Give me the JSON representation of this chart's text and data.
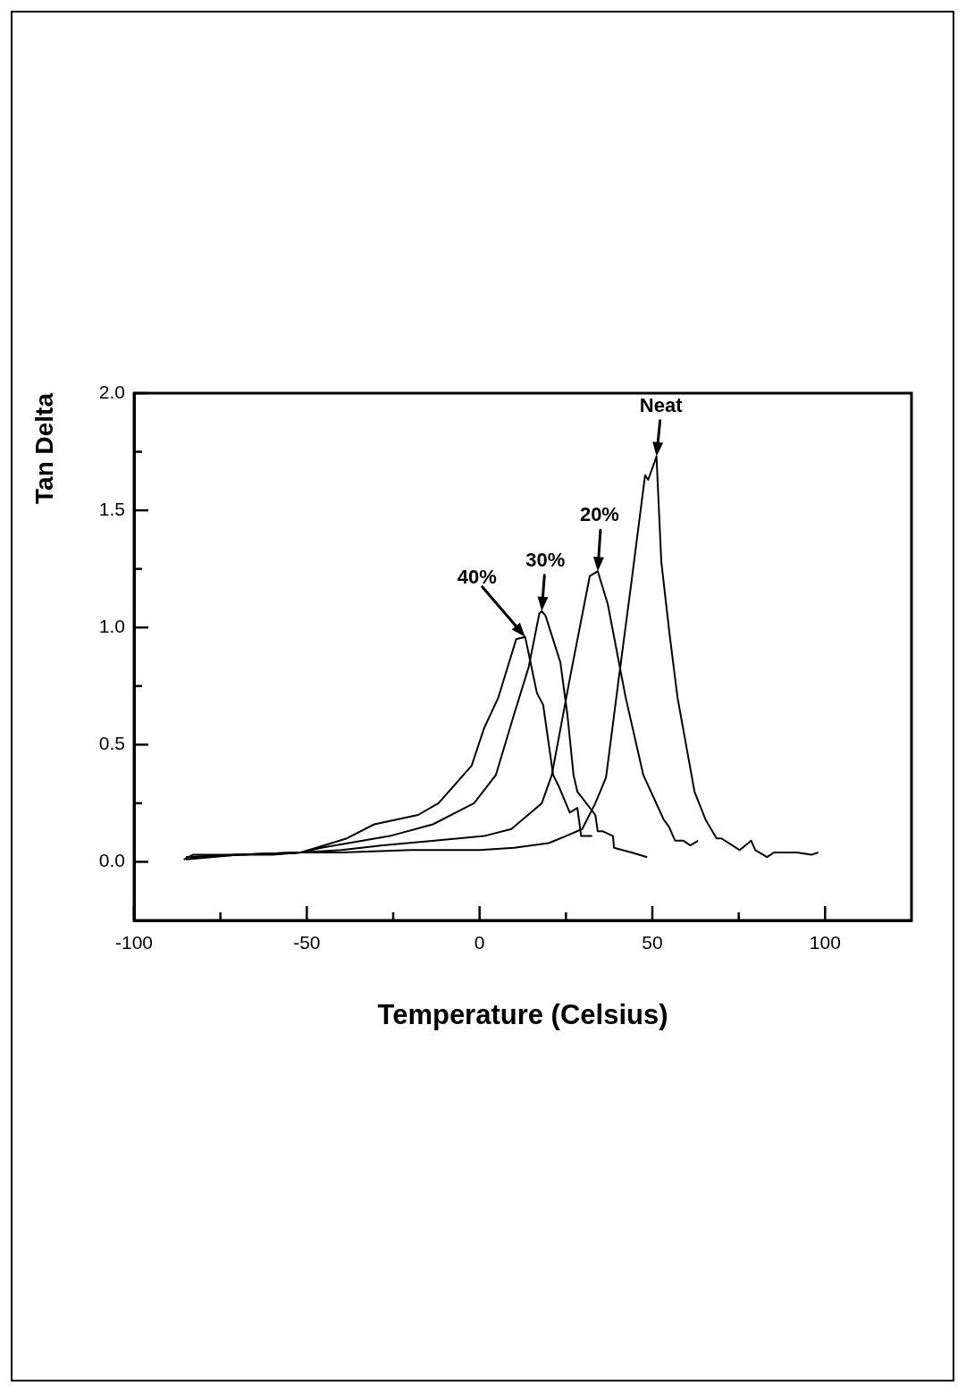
{
  "chart_data": {
    "type": "line",
    "xlabel": "Temperature (Celsius)",
    "ylabel": "Tan Delta",
    "xlim": [
      -100,
      125
    ],
    "ylim": [
      -0.25,
      2.0
    ],
    "xticks": [
      -100,
      {
        "value": -75,
        "label": null
      },
      -50,
      {
        "value": -25,
        "label": null
      },
      0,
      {
        "value": 25,
        "label": null
      },
      50,
      {
        "value": 75,
        "label": null
      },
      100
    ],
    "yticks": [
      {
        "value": 0,
        "label": "0.0"
      },
      {
        "value": 0.25,
        "label": null
      },
      {
        "value": 0.5,
        "label": "0.5"
      },
      {
        "value": 0.75,
        "label": null
      },
      {
        "value": 1,
        "label": "1.0"
      },
      {
        "value": 1.25,
        "label": null
      },
      {
        "value": 1.5,
        "label": "1.5"
      },
      {
        "value": 1.75,
        "label": null
      },
      {
        "value": 2,
        "label": "2.0"
      }
    ],
    "marker": "none",
    "series": [
      {
        "color": "#000000",
        "x": [
          -85.6,
          -83,
          -70,
          -60,
          -51.7,
          -40,
          -20,
          0,
          10,
          20,
          25,
          29.7,
          33.5,
          36.6,
          40,
          44,
          47.9,
          48.8,
          51.2,
          52.6,
          55,
          57.3,
          60,
          62.2,
          65.4,
          68.6,
          70,
          75.3,
          78.6,
          79.8,
          83.2,
          85.2,
          88,
          91.9,
          96,
          98
        ],
        "values": [
          0.01,
          0.03,
          0.03,
          0.03,
          0.04,
          0.04,
          0.05,
          0.05,
          0.06,
          0.08,
          0.11,
          0.14,
          0.25,
          0.36,
          0.75,
          1.2,
          1.65,
          1.63,
          1.73,
          1.28,
          0.97,
          0.7,
          0.48,
          0.3,
          0.18,
          0.1,
          0.1,
          0.05,
          0.09,
          0.05,
          0.02,
          0.04,
          0.04,
          0.04,
          0.03,
          0.04
        ]
      },
      {
        "color": "#000000",
        "x": [
          -85,
          -70,
          -51.7,
          -40,
          -28,
          -13,
          1.3,
          9.2,
          18,
          20.9,
          26.1,
          31.9,
          34.2,
          37.1,
          42.3,
          47.4,
          53.3,
          54.8,
          56.6,
          59,
          61,
          63.2
        ],
        "values": [
          0.02,
          0.03,
          0.04,
          0.05,
          0.07,
          0.09,
          0.11,
          0.14,
          0.25,
          0.37,
          0.78,
          1.22,
          1.24,
          1.1,
          0.7,
          0.37,
          0.18,
          0.15,
          0.09,
          0.09,
          0.07,
          0.09
        ]
      },
      {
        "color": "#000000",
        "x": [
          -84,
          -70,
          -51.7,
          -45.8,
          -26,
          -13.5,
          -1.6,
          4.7,
          10,
          14.2,
          17.3,
          18,
          19.1,
          23.4,
          25.4,
          27.2,
          28.3,
          33.5,
          34.2,
          35.7,
          38.6,
          38.9,
          44,
          48.5
        ],
        "values": [
          0.02,
          0.03,
          0.04,
          0.06,
          0.11,
          0.16,
          0.25,
          0.37,
          0.63,
          0.83,
          1.06,
          1.07,
          1.05,
          0.85,
          0.63,
          0.37,
          0.3,
          0.2,
          0.13,
          0.13,
          0.11,
          0.06,
          0.04,
          0.02
        ]
      },
      {
        "color": "#000000",
        "x": [
          -85,
          -70,
          -51.7,
          -38.4,
          -30.5,
          -17.8,
          -11.9,
          -2.3,
          1.3,
          5.4,
          10.6,
          13.2,
          16.6,
          18.4,
          21.3,
          23,
          26.1,
          28.3,
          29.4,
          32.6
        ],
        "values": [
          0.01,
          0.03,
          0.04,
          0.1,
          0.16,
          0.2,
          0.25,
          0.41,
          0.57,
          0.7,
          0.95,
          0.96,
          0.72,
          0.67,
          0.37,
          0.32,
          0.21,
          0.23,
          0.11,
          0.11
        ]
      }
    ],
    "annotations": [
      {
        "text": "Neat",
        "x": 51.2,
        "y": 1.73
      },
      {
        "text": "20%",
        "x": 34.2,
        "y": 1.24
      },
      {
        "text": "30%",
        "x": 18,
        "y": 1.07
      },
      {
        "text": "40%",
        "x": 13.2,
        "y": 0.96
      }
    ]
  }
}
